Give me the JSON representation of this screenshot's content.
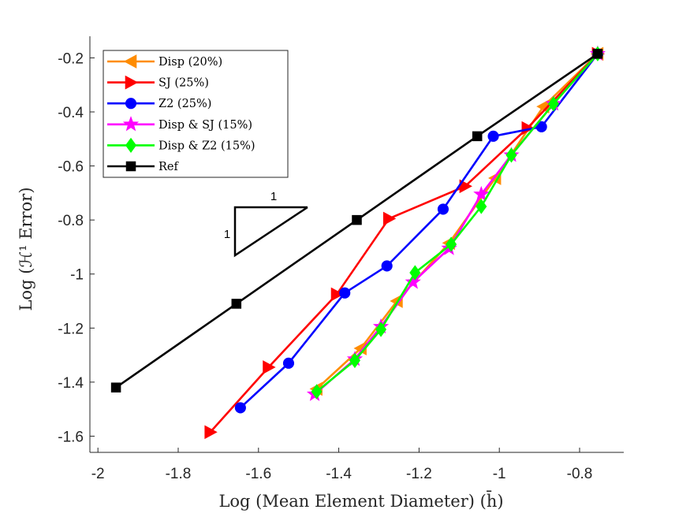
{
  "chart_data": {
    "type": "line",
    "title": "",
    "xlabel": "Log (Mean Element Diameter)  (h̄)",
    "ylabel": "Log (ℋ¹ Error)",
    "xlim": [
      -2.02,
      -0.69
    ],
    "ylim": [
      -1.66,
      -0.12
    ],
    "xticks": [
      -2,
      -1.8,
      -1.6,
      -1.4,
      -1.2,
      -1,
      -0.8
    ],
    "yticks": [
      -1.6,
      -1.4,
      -1.2,
      -1,
      -0.8,
      -0.6,
      -0.4,
      -0.2
    ],
    "xtick_labels": [
      "-2",
      "-1.8",
      "-1.6",
      "-1.4",
      "-1.2",
      "-1",
      "-0.8"
    ],
    "ytick_labels": [
      "-1.6",
      "-1.4",
      "-1.2",
      "-1",
      "-0.8",
      "-0.6",
      "-0.4",
      "-0.2"
    ],
    "grid": false,
    "legend_position": "top-left",
    "series": [
      {
        "name": "Disp (20%)",
        "color": "#ff8c00",
        "marker": "triangle-left",
        "x": [
          -1.455,
          -1.345,
          -1.255,
          -1.125,
          -1.01,
          -0.89,
          -0.755
        ],
        "y": [
          -1.425,
          -1.275,
          -1.1,
          -0.885,
          -0.645,
          -0.38,
          -0.185
        ]
      },
      {
        "name": "SJ (25%)",
        "color": "#ff0000",
        "marker": "triangle-right",
        "x": [
          -1.72,
          -1.575,
          -1.405,
          -1.275,
          -1.085,
          -0.93,
          -0.755
        ],
        "y": [
          -1.585,
          -1.345,
          -1.075,
          -0.795,
          -0.675,
          -0.46,
          -0.185
        ]
      },
      {
        "name": "Z2 (25%)",
        "color": "#0000ff",
        "marker": "circle",
        "x": [
          -1.645,
          -1.525,
          -1.385,
          -1.28,
          -1.14,
          -1.015,
          -0.895,
          -0.755
        ],
        "y": [
          -1.495,
          -1.33,
          -1.07,
          -0.97,
          -0.76,
          -0.49,
          -0.455,
          -0.185
        ]
      },
      {
        "name": "Disp & SJ (15%)",
        "color": "#ff00ff",
        "marker": "star",
        "x": [
          -1.46,
          -1.36,
          -1.295,
          -1.215,
          -1.125,
          -1.045,
          -0.97,
          -0.865,
          -0.755
        ],
        "y": [
          -1.445,
          -1.315,
          -1.195,
          -1.03,
          -0.905,
          -0.705,
          -0.56,
          -0.37,
          -0.185
        ]
      },
      {
        "name": "Disp & Z2 (15%)",
        "color": "#00ff00",
        "marker": "diamond",
        "x": [
          -1.455,
          -1.36,
          -1.295,
          -1.21,
          -1.12,
          -1.045,
          -0.97,
          -0.865,
          -0.755
        ],
        "y": [
          -1.435,
          -1.32,
          -1.205,
          -0.995,
          -0.89,
          -0.75,
          -0.56,
          -0.37,
          -0.185
        ]
      },
      {
        "name": "Ref",
        "color": "#000000",
        "marker": "square",
        "x": [
          -1.955,
          -1.655,
          -1.355,
          -1.055,
          -0.755
        ],
        "y": [
          -1.42,
          -1.11,
          -0.8,
          -0.49,
          -0.185
        ]
      }
    ],
    "annotations": {
      "slope_triangle_run": "1",
      "slope_triangle_rise": "1"
    }
  }
}
